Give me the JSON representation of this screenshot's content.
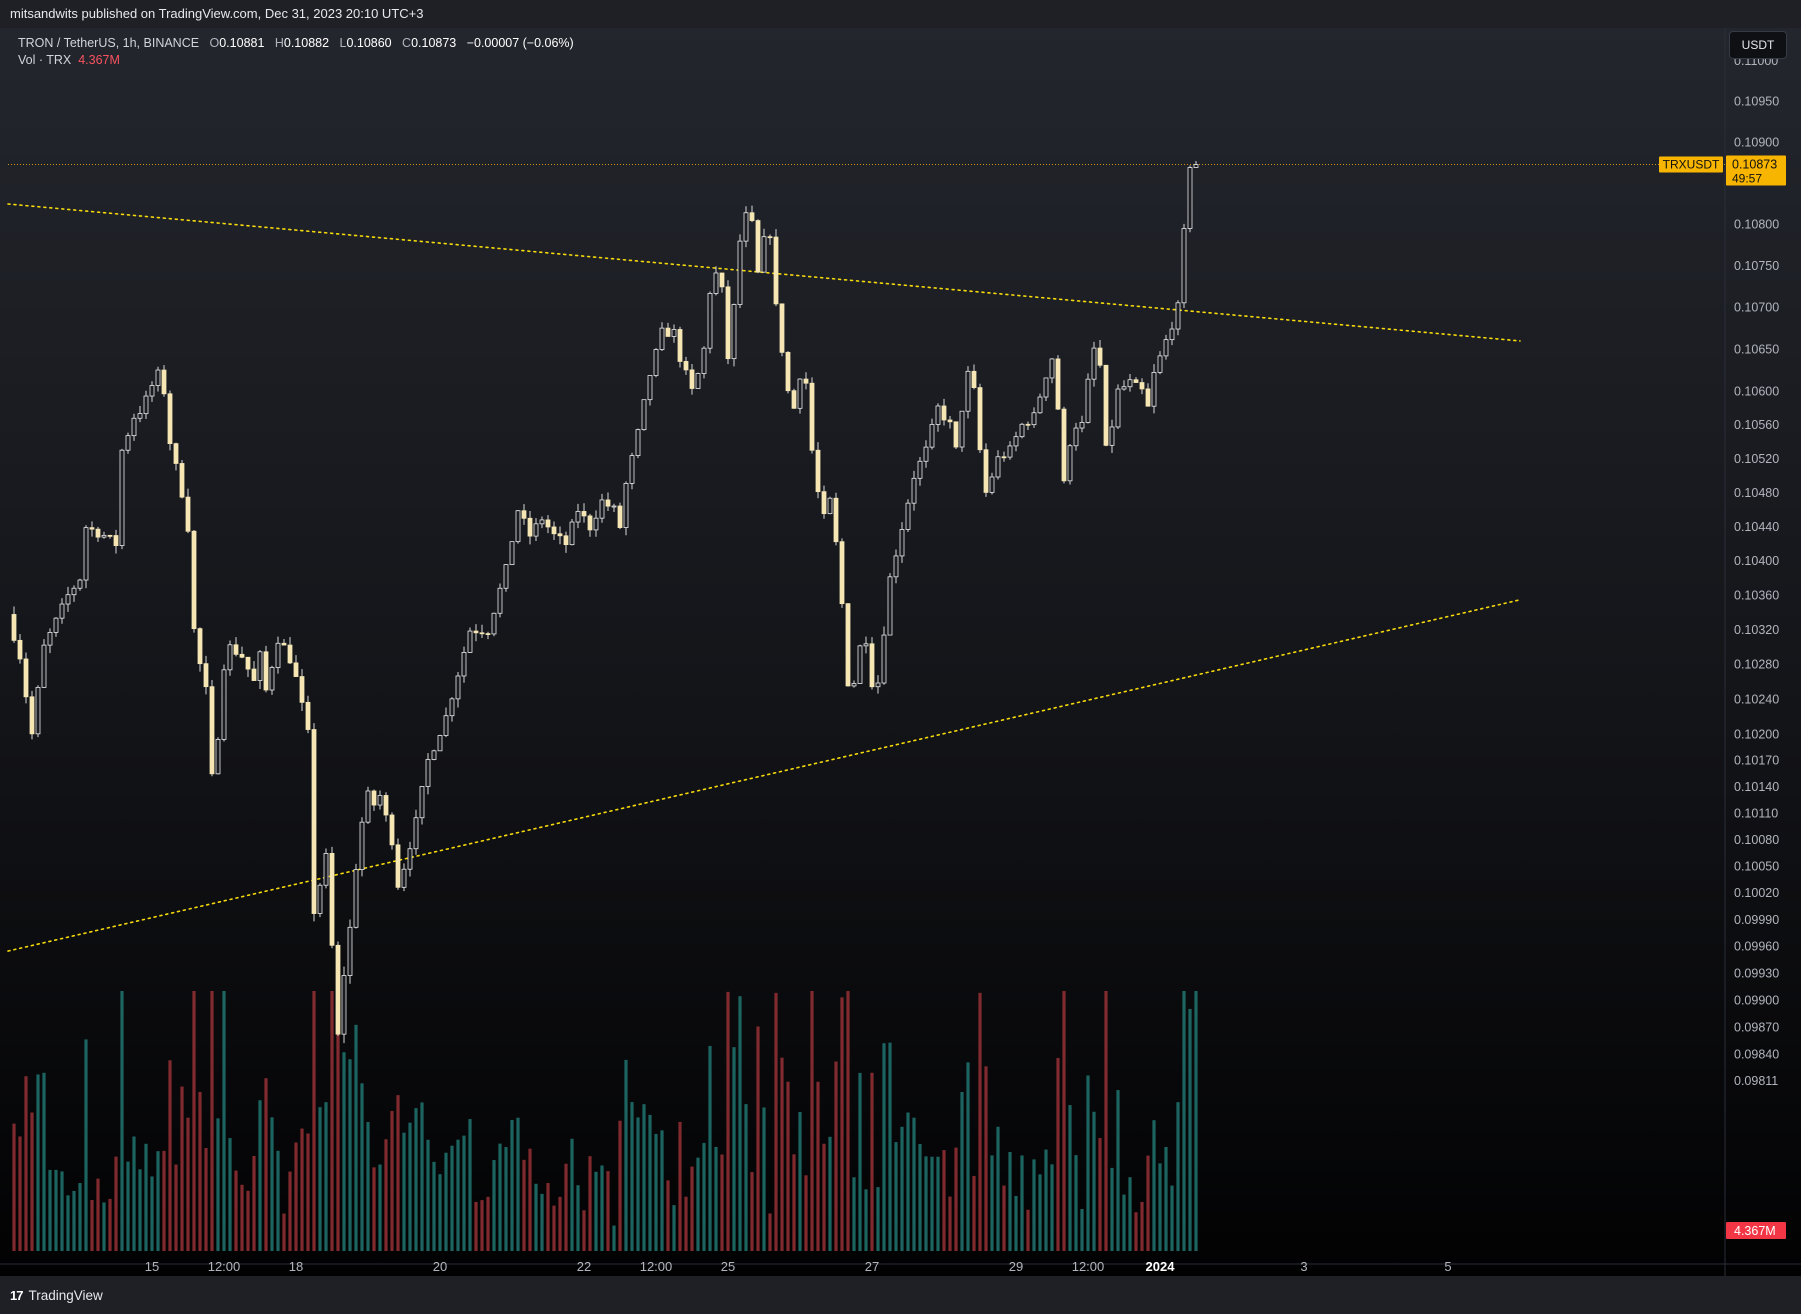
{
  "publisher_line": "mitsandwits published on TradingView.com, Dec 31, 2023 20:10 UTC+3",
  "legend": {
    "symbol": "TRON / TetherUS, 1h, BINANCE",
    "o_label": "O",
    "o_value": "0.10881",
    "h_label": "H",
    "h_value": "0.10882",
    "l_label": "L",
    "l_value": "0.10860",
    "c_label": "C",
    "c_value": "0.10873",
    "change": "−0.00007 (−0.06%)",
    "vol_label": "Vol · TRX",
    "vol_value": "4.367M"
  },
  "currency_button": "USDT",
  "brand": {
    "logo_glyph": "17",
    "name": "TradingView"
  },
  "colors": {
    "candle_body": "#f5e6b3",
    "candle_wick": "#d8d8d8",
    "trendline": "#f5d90a",
    "last_price_badge": "#f7b500",
    "volume_up": "#1f6f6a",
    "volume_down": "#8f2f33",
    "volume_badge": "#f23645"
  },
  "chart_data": {
    "type": "candlestick",
    "symbol": "TRXUSDT",
    "interval": "1h",
    "y_scale": "log",
    "ylim": [
      0.09811,
      0.11
    ],
    "y_ticks": [
      "0.11000",
      "0.10950",
      "0.10900",
      "0.10800",
      "0.10750",
      "0.10700",
      "0.10650",
      "0.10600",
      "0.10560",
      "0.10520",
      "0.10480",
      "0.10440",
      "0.10400",
      "0.10360",
      "0.10320",
      "0.10280",
      "0.10240",
      "0.10200",
      "0.10170",
      "0.10140",
      "0.10110",
      "0.10080",
      "0.10050",
      "0.10020",
      "0.09990",
      "0.09960",
      "0.09930",
      "0.09900",
      "0.09870",
      "0.09840",
      "0.09811"
    ],
    "x_ticks": [
      {
        "t": 0,
        "label": "15"
      },
      {
        "t": 12,
        "label": "12:00"
      },
      {
        "t": 24,
        "label": "18"
      },
      {
        "t": 48,
        "label": "20"
      },
      {
        "t": 72,
        "label": "22"
      },
      {
        "t": 84,
        "label": "12:00"
      },
      {
        "t": 96,
        "label": "25"
      },
      {
        "t": 120,
        "label": "27"
      },
      {
        "t": 144,
        "label": "29"
      },
      {
        "t": 156,
        "label": "12:00"
      },
      {
        "t": 168,
        "label": "2024",
        "bold": true
      },
      {
        "t": 192,
        "label": "3"
      },
      {
        "t": 216,
        "label": "5"
      }
    ],
    "time_unit": "hours since Dec 15 00:00 (tick labels shown are days/hours)",
    "price_path_hourly_anchors": [
      [
        -23.5,
        0.1035
      ],
      [
        -21,
        0.1029
      ],
      [
        -19,
        0.102
      ],
      [
        -17,
        0.103
      ],
      [
        -15,
        0.1033
      ],
      [
        -13,
        0.1036
      ],
      [
        -11,
        0.1038
      ],
      [
        -10,
        0.1044
      ],
      [
        -7,
        0.1043
      ],
      [
        -5,
        0.1042
      ],
      [
        -4,
        0.1053
      ],
      [
        -2,
        0.1057
      ],
      [
        -0.5,
        0.1058
      ],
      [
        0.5,
        0.106
      ],
      [
        2,
        0.1062
      ],
      [
        3,
        0.106
      ],
      [
        4,
        0.1054
      ],
      [
        6,
        0.1048
      ],
      [
        7,
        0.1044
      ],
      [
        8,
        0.1032
      ],
      [
        9,
        0.1028
      ],
      [
        10,
        0.1025
      ],
      [
        11,
        0.1015
      ],
      [
        12,
        0.102
      ],
      [
        13,
        0.1028
      ],
      [
        14,
        0.103
      ],
      [
        16,
        0.1029
      ],
      [
        18,
        0.1026
      ],
      [
        19,
        0.1029
      ],
      [
        20,
        0.1025
      ],
      [
        22,
        0.1031
      ],
      [
        23,
        0.103
      ],
      [
        24.5,
        0.1028
      ],
      [
        27,
        0.102
      ],
      [
        28,
        0.1
      ],
      [
        29,
        0.1003
      ],
      [
        30,
        0.1006
      ],
      [
        31,
        0.0996
      ],
      [
        31.5,
        0.0984
      ],
      [
        32.5,
        0.0988
      ],
      [
        33,
        0.0993
      ],
      [
        34,
        0.0998
      ],
      [
        35,
        0.1005
      ],
      [
        36,
        0.101
      ],
      [
        37,
        0.1013
      ],
      [
        38,
        0.1012
      ],
      [
        39,
        0.1013
      ],
      [
        41,
        0.1008
      ],
      [
        42,
        0.1003
      ],
      [
        43,
        0.1005
      ],
      [
        45,
        0.101
      ],
      [
        47,
        0.1017
      ],
      [
        50,
        0.1022
      ],
      [
        52,
        0.1027
      ],
      [
        54,
        0.1032
      ],
      [
        57,
        0.1032
      ],
      [
        60,
        0.1039
      ],
      [
        62,
        0.1046
      ],
      [
        64,
        0.1043
      ],
      [
        66,
        0.1045
      ],
      [
        68,
        0.1043
      ],
      [
        70,
        0.1042
      ],
      [
        72,
        0.1046
      ],
      [
        74,
        0.1044
      ],
      [
        76,
        0.1047
      ],
      [
        78,
        0.1046
      ],
      [
        79,
        0.1044
      ],
      [
        80,
        0.1049
      ],
      [
        82,
        0.1055
      ],
      [
        84,
        0.1062
      ],
      [
        86,
        0.1067
      ],
      [
        88,
        0.1067
      ],
      [
        89,
        0.1064
      ],
      [
        91,
        0.106
      ],
      [
        92,
        0.1062
      ],
      [
        93,
        0.1065
      ],
      [
        94,
        0.1072
      ],
      [
        95,
        0.1074
      ],
      [
        96,
        0.1072
      ],
      [
        97,
        0.1064
      ],
      [
        98,
        0.107
      ],
      [
        99,
        0.1078
      ],
      [
        100,
        0.1081
      ],
      [
        101,
        0.108
      ],
      [
        102,
        0.1074
      ],
      [
        103,
        0.1078
      ],
      [
        104,
        0.1079
      ],
      [
        105,
        0.107
      ],
      [
        106,
        0.1065
      ],
      [
        107,
        0.106
      ],
      [
        108,
        0.1058
      ],
      [
        109,
        0.1062
      ],
      [
        110,
        0.1061
      ],
      [
        111,
        0.1053
      ],
      [
        112,
        0.1048
      ],
      [
        113,
        0.1045
      ],
      [
        114,
        0.1047
      ],
      [
        115,
        0.1042
      ],
      [
        116,
        0.1035
      ],
      [
        117,
        0.1026
      ],
      [
        118,
        0.1026
      ],
      [
        119,
        0.103
      ],
      [
        120,
        0.1031
      ],
      [
        121,
        0.1026
      ],
      [
        122,
        0.1026
      ],
      [
        123,
        0.1032
      ],
      [
        124,
        0.1038
      ],
      [
        126,
        0.1044
      ],
      [
        128,
        0.105
      ],
      [
        130,
        0.1053
      ],
      [
        132,
        0.1058
      ],
      [
        134,
        0.1056
      ],
      [
        135,
        0.1053
      ],
      [
        136,
        0.1058
      ],
      [
        137,
        0.1062
      ],
      [
        138,
        0.106
      ],
      [
        139,
        0.1053
      ],
      [
        140,
        0.1048
      ],
      [
        142,
        0.1052
      ],
      [
        144,
        0.1053
      ],
      [
        146,
        0.1056
      ],
      [
        148,
        0.1057
      ],
      [
        150,
        0.1062
      ],
      [
        151,
        0.1064
      ],
      [
        152,
        0.1058
      ],
      [
        153,
        0.1049
      ],
      [
        154,
        0.1054
      ],
      [
        155,
        0.1056
      ],
      [
        156,
        0.1056
      ],
      [
        157,
        0.1061
      ],
      [
        158,
        0.1065
      ],
      [
        159,
        0.1063
      ],
      [
        160,
        0.1053
      ],
      [
        161,
        0.1056
      ],
      [
        162,
        0.106
      ],
      [
        164,
        0.1061
      ],
      [
        166,
        0.106
      ],
      [
        167,
        0.1058
      ],
      [
        168,
        0.1062
      ],
      [
        170,
        0.1066
      ],
      [
        171,
        0.1068
      ],
      [
        172,
        0.107
      ],
      [
        173,
        0.1079
      ],
      [
        174,
        0.10873
      ]
    ],
    "volume_max_trx": 9.6,
    "last_volume": "4.367M",
    "trendlines": [
      {
        "name": "upper",
        "style": "dotted",
        "points": [
          [
            -24,
            0.10825
          ],
          [
            228,
            0.1066
          ]
        ]
      },
      {
        "name": "lower",
        "style": "dotted",
        "points": [
          [
            -24,
            0.09955
          ],
          [
            228,
            0.10355
          ]
        ]
      }
    ],
    "last_price": {
      "label": "TRXUSDT",
      "value": "0.10873",
      "countdown": "49:57",
      "y": 0.10873
    }
  }
}
